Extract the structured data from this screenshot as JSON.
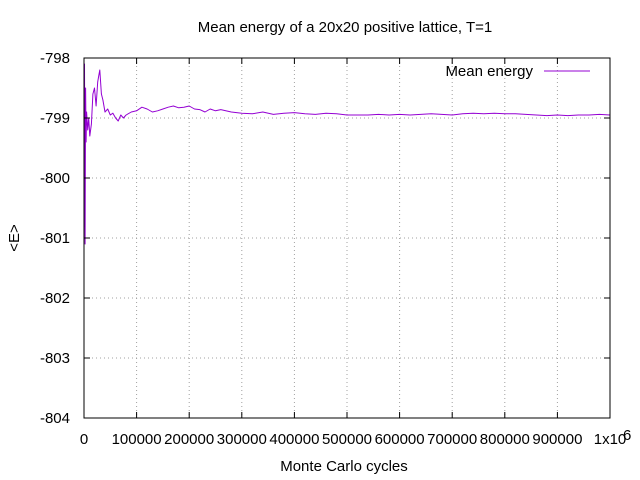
{
  "chart_data": {
    "type": "line",
    "title": "Mean energy of a 20x20 positive lattice, T=1",
    "xlabel": "Monte Carlo cycles",
    "ylabel": "<E>",
    "xlim": [
      0,
      1000000
    ],
    "ylim": [
      -804,
      -798
    ],
    "grid": true,
    "legend_position": "top-right",
    "x_ticks": [
      "0",
      "100000",
      "200000",
      "300000",
      "400000",
      "500000",
      "600000",
      "700000",
      "800000",
      "900000",
      "1x10"
    ],
    "x_tick_exponent": "6",
    "y_ticks": [
      "-798",
      "-799",
      "-800",
      "-801",
      "-802",
      "-803",
      "-804"
    ],
    "series": [
      {
        "name": "Mean energy",
        "color": "#9400d3",
        "x": [
          0,
          1000,
          2000,
          3000,
          4000,
          5000,
          7000,
          9000,
          11000,
          14000,
          17000,
          20000,
          23000,
          26000,
          28000,
          30000,
          33000,
          36000,
          40000,
          45000,
          50000,
          55000,
          60000,
          65000,
          70000,
          75000,
          80000,
          90000,
          100000,
          110000,
          120000,
          130000,
          140000,
          150000,
          160000,
          170000,
          180000,
          190000,
          200000,
          210000,
          220000,
          230000,
          240000,
          250000,
          260000,
          280000,
          300000,
          320000,
          340000,
          360000,
          380000,
          400000,
          420000,
          440000,
          460000,
          480000,
          500000,
          520000,
          540000,
          560000,
          580000,
          600000,
          620000,
          640000,
          660000,
          680000,
          700000,
          720000,
          740000,
          760000,
          780000,
          800000,
          820000,
          840000,
          860000,
          880000,
          900000,
          920000,
          940000,
          960000,
          980000,
          1000000
        ],
        "y": [
          -801.0,
          -798.1,
          -801.1,
          -798.5,
          -799.4,
          -798.9,
          -799.2,
          -799.0,
          -799.3,
          -799.1,
          -798.6,
          -798.5,
          -798.8,
          -798.4,
          -798.3,
          -798.2,
          -798.6,
          -798.7,
          -798.9,
          -798.85,
          -798.95,
          -798.92,
          -799.0,
          -799.05,
          -798.95,
          -799.0,
          -798.95,
          -798.9,
          -798.88,
          -798.82,
          -798.85,
          -798.9,
          -798.88,
          -798.85,
          -798.82,
          -798.8,
          -798.83,
          -798.82,
          -798.8,
          -798.85,
          -798.86,
          -798.9,
          -798.85,
          -798.88,
          -798.86,
          -798.9,
          -798.92,
          -798.93,
          -798.9,
          -798.94,
          -798.92,
          -798.91,
          -798.93,
          -798.94,
          -798.92,
          -798.93,
          -798.95,
          -798.95,
          -798.95,
          -798.94,
          -798.95,
          -798.94,
          -798.95,
          -798.94,
          -798.93,
          -798.94,
          -798.95,
          -798.93,
          -798.92,
          -798.93,
          -798.92,
          -798.93,
          -798.93,
          -798.94,
          -798.95,
          -798.96,
          -798.95,
          -798.96,
          -798.95,
          -798.95,
          -798.94,
          -798.95
        ]
      }
    ]
  }
}
